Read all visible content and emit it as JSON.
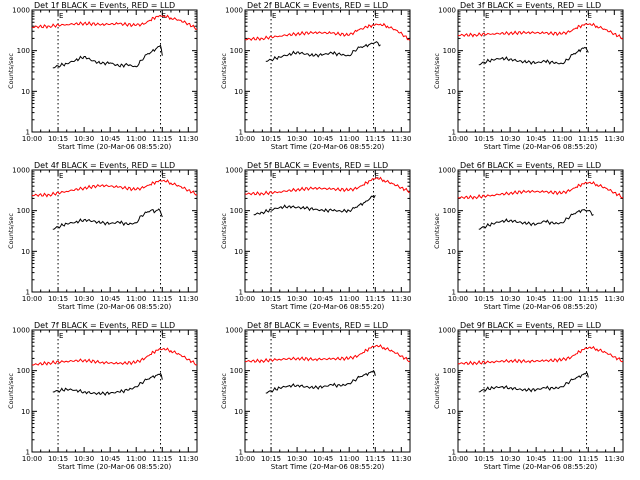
{
  "figure": {
    "xlabel": "Start Time (20-Mar-06 08:55:20)",
    "ylabel": "Counts/sec",
    "flag_letter": "E",
    "colors": {
      "events": "#000000",
      "lld": "#ff0000",
      "flag": "#000000"
    }
  },
  "chart_data": [
    {
      "type": "line",
      "title": "Det 1f BLACK = Events, RED = LLD",
      "x_ticks": [
        "10:00",
        "10:15",
        "10:30",
        "10:45",
        "11:00",
        "11:15",
        "11:30"
      ],
      "y_ticks": [
        "1",
        "10",
        "100",
        "1000"
      ],
      "xlim": [
        "10:00",
        "11:35"
      ],
      "ylim": [
        1,
        1000
      ],
      "yscale": "log",
      "flag_times": [
        "10:15",
        "11:14"
      ],
      "series": [
        {
          "color": "#000000",
          "x": [
            "10:12",
            "10:15",
            "10:20",
            "10:25",
            "10:30",
            "10:35",
            "10:40",
            "10:45",
            "10:50",
            "10:55",
            "11:00",
            "11:03",
            "11:06",
            "11:09",
            "11:12",
            "11:14",
            "11:15"
          ],
          "values": [
            38,
            42,
            48,
            58,
            72,
            56,
            48,
            50,
            42,
            45,
            40,
            58,
            80,
            95,
            118,
            135,
            75
          ]
        },
        {
          "color": "#ff0000",
          "x": [
            "10:00",
            "10:10",
            "10:20",
            "10:30",
            "10:40",
            "10:50",
            "11:00",
            "11:05",
            "11:08",
            "11:12",
            "11:16",
            "11:20",
            "11:25",
            "11:30",
            "11:35"
          ],
          "values": [
            380,
            400,
            440,
            470,
            440,
            460,
            420,
            460,
            560,
            700,
            720,
            640,
            560,
            460,
            340
          ]
        }
      ]
    },
    {
      "type": "line",
      "title": "Det 2f BLACK = Events, RED = LLD",
      "x_ticks": [
        "10:00",
        "10:15",
        "10:30",
        "10:45",
        "11:00",
        "11:15",
        "11:30"
      ],
      "y_ticks": [
        "1",
        "10",
        "100",
        "1000"
      ],
      "xlim": [
        "10:00",
        "11:35"
      ],
      "ylim": [
        1,
        1000
      ],
      "yscale": "log",
      "flag_times": [
        "10:15",
        "11:14"
      ],
      "series": [
        {
          "color": "#000000",
          "x": [
            "10:12",
            "10:15",
            "10:20",
            "10:25",
            "10:30",
            "10:35",
            "10:40",
            "10:45",
            "10:50",
            "10:55",
            "11:00",
            "11:03",
            "11:06",
            "11:09",
            "11:12",
            "11:15",
            "11:18"
          ],
          "values": [
            55,
            60,
            70,
            80,
            92,
            82,
            75,
            80,
            88,
            80,
            75,
            100,
            120,
            130,
            145,
            160,
            140
          ]
        },
        {
          "color": "#ff0000",
          "x": [
            "10:00",
            "10:10",
            "10:20",
            "10:30",
            "10:40",
            "10:50",
            "11:00",
            "11:05",
            "11:10",
            "11:14",
            "11:18",
            "11:22",
            "11:27",
            "11:32",
            "11:35"
          ],
          "values": [
            190,
            200,
            230,
            260,
            280,
            270,
            240,
            320,
            380,
            430,
            450,
            400,
            320,
            230,
            180
          ]
        }
      ]
    },
    {
      "type": "line",
      "title": "Det 3f BLACK = Events, RED = LLD",
      "x_ticks": [
        "10:00",
        "10:15",
        "10:30",
        "10:45",
        "11:00",
        "11:15",
        "11:30"
      ],
      "y_ticks": [
        "1",
        "10",
        "100",
        "1000"
      ],
      "xlim": [
        "10:00",
        "11:35"
      ],
      "ylim": [
        1,
        1000
      ],
      "yscale": "log",
      "flag_times": [
        "10:15",
        "11:14"
      ],
      "series": [
        {
          "color": "#000000",
          "x": [
            "10:12",
            "10:15",
            "10:20",
            "10:25",
            "10:30",
            "10:35",
            "10:40",
            "10:45",
            "10:50",
            "10:55",
            "11:00",
            "11:03",
            "11:06",
            "11:09",
            "11:11",
            "11:13",
            "11:15"
          ],
          "values": [
            45,
            52,
            60,
            65,
            62,
            55,
            52,
            50,
            55,
            50,
            48,
            60,
            80,
            95,
            110,
            120,
            90
          ]
        },
        {
          "color": "#ff0000",
          "x": [
            "10:00",
            "10:10",
            "10:20",
            "10:30",
            "10:40",
            "10:50",
            "11:00",
            "11:05",
            "11:08",
            "11:12",
            "11:16",
            "11:20",
            "11:25",
            "11:30",
            "11:35"
          ],
          "values": [
            240,
            245,
            260,
            270,
            280,
            270,
            260,
            300,
            360,
            430,
            460,
            400,
            330,
            260,
            200
          ]
        }
      ]
    },
    {
      "type": "line",
      "title": "Det 4f BLACK = Events, RED = LLD",
      "x_ticks": [
        "10:00",
        "10:15",
        "10:30",
        "10:45",
        "11:00",
        "11:15",
        "11:30"
      ],
      "y_ticks": [
        "1",
        "10",
        "100",
        "1000"
      ],
      "xlim": [
        "10:00",
        "11:35"
      ],
      "ylim": [
        1,
        1000
      ],
      "yscale": "log",
      "flag_times": [
        "10:15",
        "11:14"
      ],
      "series": [
        {
          "color": "#000000",
          "x": [
            "10:12",
            "10:15",
            "10:20",
            "10:25",
            "10:30",
            "10:35",
            "10:40",
            "10:45",
            "10:50",
            "10:55",
            "11:00",
            "11:03",
            "11:06",
            "11:09",
            "11:11",
            "11:13",
            "11:15"
          ],
          "values": [
            35,
            40,
            48,
            52,
            60,
            55,
            50,
            48,
            52,
            46,
            50,
            75,
            90,
            105,
            95,
            110,
            70
          ]
        },
        {
          "color": "#ff0000",
          "x": [
            "10:00",
            "10:10",
            "10:20",
            "10:30",
            "10:40",
            "10:50",
            "11:00",
            "11:05",
            "11:08",
            "11:12",
            "11:16",
            "11:20",
            "11:25",
            "11:30",
            "11:35"
          ],
          "values": [
            240,
            245,
            300,
            360,
            420,
            380,
            330,
            380,
            440,
            520,
            560,
            480,
            400,
            320,
            250
          ]
        }
      ]
    },
    {
      "type": "line",
      "title": "Det 5f BLACK = Events, RED = LLD",
      "x_ticks": [
        "10:00",
        "10:15",
        "10:30",
        "10:45",
        "11:00",
        "11:15",
        "11:30"
      ],
      "y_ticks": [
        "1",
        "10",
        "100",
        "1000"
      ],
      "xlim": [
        "10:00",
        "11:35"
      ],
      "ylim": [
        1,
        1000
      ],
      "yscale": "log",
      "flag_times": [
        "10:15",
        "11:14"
      ],
      "series": [
        {
          "color": "#000000",
          "x": [
            "10:05",
            "10:10",
            "10:15",
            "10:20",
            "10:25",
            "10:30",
            "10:35",
            "10:40",
            "10:45",
            "10:50",
            "10:55",
            "11:00",
            "11:03",
            "11:06",
            "11:09",
            "11:12",
            "11:15"
          ],
          "values": [
            80,
            90,
            105,
            120,
            128,
            120,
            115,
            108,
            100,
            102,
            98,
            100,
            115,
            140,
            160,
            200,
            240
          ]
        },
        {
          "color": "#ff0000",
          "x": [
            "10:00",
            "10:10",
            "10:20",
            "10:30",
            "10:40",
            "10:50",
            "11:00",
            "11:05",
            "11:08",
            "11:12",
            "11:16",
            "11:20",
            "11:25",
            "11:30",
            "11:35"
          ],
          "values": [
            260,
            265,
            290,
            330,
            360,
            340,
            320,
            360,
            430,
            550,
            650,
            560,
            460,
            370,
            290
          ]
        }
      ]
    },
    {
      "type": "line",
      "title": "Det 6f BLACK = Events, RED = LLD",
      "x_ticks": [
        "10:00",
        "10:15",
        "10:30",
        "10:45",
        "11:00",
        "11:15",
        "11:30"
      ],
      "y_ticks": [
        "1",
        "10",
        "100",
        "1000"
      ],
      "xlim": [
        "10:00",
        "11:35"
      ],
      "ylim": [
        1,
        1000
      ],
      "yscale": "log",
      "flag_times": [
        "10:15",
        "11:14"
      ],
      "series": [
        {
          "color": "#000000",
          "x": [
            "10:12",
            "10:15",
            "10:20",
            "10:25",
            "10:30",
            "10:35",
            "10:40",
            "10:45",
            "10:50",
            "10:55",
            "11:00",
            "11:03",
            "11:06",
            "11:09",
            "11:12",
            "11:15",
            "11:18"
          ],
          "values": [
            35,
            40,
            48,
            55,
            58,
            52,
            48,
            46,
            55,
            48,
            50,
            65,
            80,
            95,
            105,
            100,
            80
          ]
        },
        {
          "color": "#ff0000",
          "x": [
            "10:00",
            "10:10",
            "10:20",
            "10:30",
            "10:40",
            "10:50",
            "11:00",
            "11:05",
            "11:08",
            "11:12",
            "11:16",
            "11:20",
            "11:25",
            "11:30",
            "11:35"
          ],
          "values": [
            210,
            215,
            240,
            270,
            300,
            290,
            270,
            320,
            380,
            460,
            500,
            440,
            360,
            280,
            210
          ]
        }
      ]
    },
    {
      "type": "line",
      "title": "Det 7f BLACK = Events, RED = LLD",
      "x_ticks": [
        "10:00",
        "10:15",
        "10:30",
        "10:45",
        "11:00",
        "11:15",
        "11:30"
      ],
      "y_ticks": [
        "1",
        "10",
        "100",
        "1000"
      ],
      "xlim": [
        "10:00",
        "11:35"
      ],
      "ylim": [
        1,
        1000
      ],
      "yscale": "log",
      "flag_times": [
        "10:15",
        "11:14"
      ],
      "series": [
        {
          "color": "#000000",
          "x": [
            "10:12",
            "10:15",
            "10:20",
            "10:25",
            "10:30",
            "10:35",
            "10:40",
            "10:45",
            "10:50",
            "10:55",
            "11:00",
            "11:03",
            "11:06",
            "11:09",
            "11:12",
            "11:14",
            "11:15"
          ],
          "values": [
            30,
            32,
            35,
            33,
            30,
            28,
            27,
            28,
            30,
            33,
            40,
            50,
            60,
            70,
            78,
            85,
            60
          ]
        },
        {
          "color": "#ff0000",
          "x": [
            "10:00",
            "10:10",
            "10:20",
            "10:30",
            "10:40",
            "10:50",
            "11:00",
            "11:05",
            "11:08",
            "11:12",
            "11:16",
            "11:20",
            "11:25",
            "11:30",
            "11:35"
          ],
          "values": [
            140,
            155,
            170,
            180,
            160,
            150,
            160,
            200,
            250,
            320,
            350,
            310,
            250,
            190,
            140
          ]
        }
      ]
    },
    {
      "type": "line",
      "title": "Det 8f BLACK = Events, RED = LLD",
      "x_ticks": [
        "10:00",
        "10:15",
        "10:30",
        "10:45",
        "11:00",
        "11:15",
        "11:30"
      ],
      "y_ticks": [
        "1",
        "10",
        "100",
        "1000"
      ],
      "xlim": [
        "10:00",
        "11:35"
      ],
      "ylim": [
        1,
        1000
      ],
      "yscale": "log",
      "flag_times": [
        "10:15",
        "11:14"
      ],
      "series": [
        {
          "color": "#000000",
          "x": [
            "10:12",
            "10:15",
            "10:20",
            "10:25",
            "10:30",
            "10:35",
            "10:40",
            "10:45",
            "10:50",
            "10:55",
            "11:00",
            "11:03",
            "11:06",
            "11:09",
            "11:12",
            "11:14",
            "11:15"
          ],
          "values": [
            28,
            32,
            38,
            42,
            44,
            40,
            38,
            40,
            45,
            42,
            48,
            58,
            70,
            80,
            90,
            100,
            75
          ]
        },
        {
          "color": "#ff0000",
          "x": [
            "10:00",
            "10:10",
            "10:20",
            "10:30",
            "10:40",
            "10:50",
            "11:00",
            "11:05",
            "11:08",
            "11:12",
            "11:16",
            "11:20",
            "11:25",
            "11:30",
            "11:35"
          ],
          "values": [
            170,
            175,
            190,
            200,
            190,
            195,
            200,
            230,
            280,
            360,
            420,
            370,
            300,
            230,
            170
          ]
        }
      ]
    },
    {
      "type": "line",
      "title": "Det 9f BLACK = Events, RED = LLD",
      "x_ticks": [
        "10:00",
        "10:15",
        "10:30",
        "10:45",
        "11:00",
        "11:15",
        "11:30"
      ],
      "y_ticks": [
        "1",
        "10",
        "100",
        "1000"
      ],
      "xlim": [
        "10:00",
        "11:35"
      ],
      "ylim": [
        1,
        1000
      ],
      "yscale": "log",
      "flag_times": [
        "10:15",
        "11:14"
      ],
      "series": [
        {
          "color": "#000000",
          "x": [
            "10:12",
            "10:15",
            "10:20",
            "10:25",
            "10:30",
            "10:35",
            "10:40",
            "10:45",
            "10:50",
            "10:55",
            "11:00",
            "11:03",
            "11:06",
            "11:09",
            "11:12",
            "11:14",
            "11:15"
          ],
          "values": [
            30,
            34,
            38,
            40,
            38,
            35,
            33,
            34,
            38,
            36,
            40,
            50,
            60,
            70,
            80,
            90,
            68
          ]
        },
        {
          "color": "#ff0000",
          "x": [
            "10:00",
            "10:10",
            "10:20",
            "10:30",
            "10:40",
            "10:50",
            "11:00",
            "11:05",
            "11:08",
            "11:12",
            "11:16",
            "11:20",
            "11:25",
            "11:30",
            "11:35"
          ],
          "values": [
            150,
            155,
            165,
            175,
            170,
            175,
            185,
            210,
            260,
            330,
            380,
            340,
            280,
            220,
            170
          ]
        }
      ]
    }
  ]
}
